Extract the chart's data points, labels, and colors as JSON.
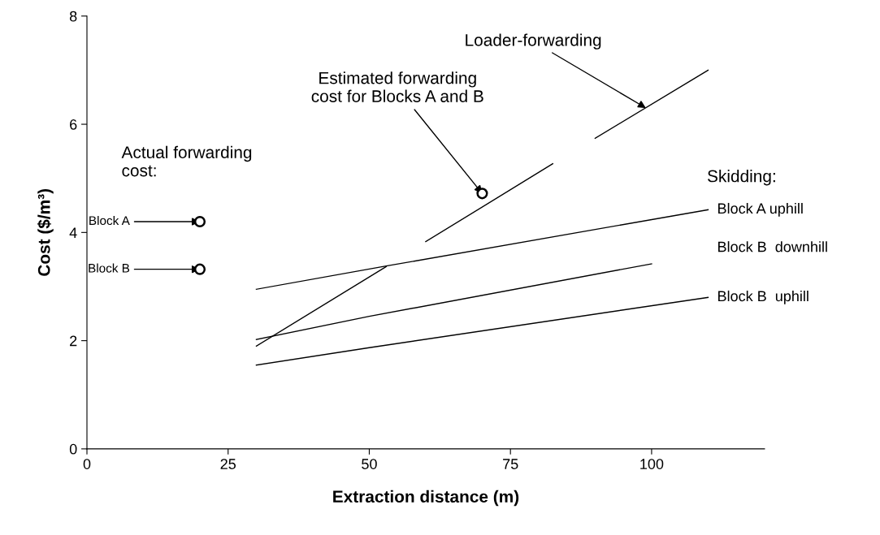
{
  "chart_data": {
    "type": "line",
    "xlabel": "Extraction distance (m)",
    "ylabel": "Cost ($/m³)",
    "xlim": [
      0,
      120
    ],
    "xticks": [
      0,
      25,
      50,
      75,
      100
    ],
    "ylim": [
      0,
      8
    ],
    "yticks": [
      0,
      2,
      4,
      6,
      8
    ],
    "grid": false,
    "legend": false,
    "line_style": "solid",
    "marker": "none",
    "series": [
      {
        "name": "Block A uphill",
        "color": "#000000",
        "x": [
          30,
          53,
          110
        ],
        "values": [
          2.95,
          3.38,
          4.42
        ]
      },
      {
        "name": "Block B  downhill",
        "color": "#000000",
        "x": [
          30,
          50,
          100
        ],
        "values": [
          2.02,
          2.45,
          3.42
        ]
      },
      {
        "name": "Block B  uphill",
        "color": "#000000",
        "x": [
          30,
          50,
          110
        ],
        "values": [
          1.55,
          1.87,
          2.8
        ]
      },
      {
        "color": "#000000",
        "x": [
          30,
          53,
          56,
          60,
          82.5,
          86,
          90,
          110
        ],
        "values": [
          1.9,
          3.37,
          null,
          3.83,
          5.27,
          null,
          5.74,
          7.0
        ]
      },
      {
        "type": "scatter",
        "marker": "circle",
        "color": "#000000",
        "x": [
          20,
          20,
          70
        ],
        "values": [
          4.2,
          3.32,
          4.72
        ]
      }
    ],
    "annotations": [
      {
        "text": "Loader-forwarding",
        "x": 99,
        "y": 6.3
      },
      {
        "text": "Estimated forwarding\ncost for Blocks A and B",
        "x": 70,
        "y": 4.72
      },
      {
        "text": "Block A",
        "x": 20,
        "y": 4.2
      },
      {
        "text": "Block B",
        "x": 20,
        "y": 3.32
      },
      "Actual forwarding\ncost:",
      "Skidding:"
    ]
  }
}
